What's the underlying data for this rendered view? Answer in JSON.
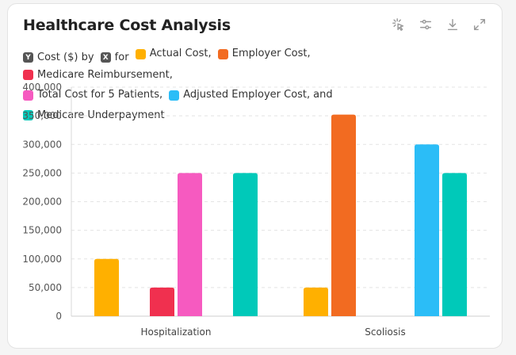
{
  "card": {
    "title": "Healthcare Cost Analysis"
  },
  "toolbar": {
    "icons": [
      "select-pointer-icon",
      "sliders-icon",
      "download-icon",
      "expand-icon"
    ]
  },
  "legend": {
    "y_badge": "Y",
    "x_badge": "X",
    "y_text": "Cost ($) by",
    "for_text": "for",
    "and_text": "and",
    "items": [
      {
        "label": "Actual Cost,",
        "color": "#FFB000"
      },
      {
        "label": "Employer Cost,",
        "color": "#F26B21"
      },
      {
        "label": "Medicare Reimbursement,",
        "color": "#F0304F"
      },
      {
        "label": "Total Cost for 5 Patients,",
        "color": "#F65AC0"
      },
      {
        "label": "Adjusted Employer Cost,",
        "color": "#2BBDF7"
      },
      {
        "label": "Medicare Underpayment",
        "color": "#00C9B9"
      }
    ]
  },
  "chart_data": {
    "type": "bar",
    "categories": [
      "Hospitalization",
      "Scoliosis"
    ],
    "ylim": [
      0,
      400000
    ],
    "yticks": [
      "0",
      "50,000",
      "100,000",
      "150,000",
      "200,000",
      "250,000",
      "300,000",
      "350,000",
      "400,000"
    ],
    "grid": true,
    "legend_placement": "top",
    "series": [
      {
        "name": "Actual Cost",
        "color": "#FFB000",
        "values": [
          100000,
          50000
        ]
      },
      {
        "name": "Employer Cost",
        "color": "#F26B21",
        "values": [
          null,
          352000
        ]
      },
      {
        "name": "Medicare Reimbursement",
        "color": "#F0304F",
        "values": [
          50000,
          null
        ]
      },
      {
        "name": "Total Cost for 5 Patients",
        "color": "#F65AC0",
        "values": [
          250000,
          null
        ]
      },
      {
        "name": "Adjusted Employer Cost",
        "color": "#2BBDF7",
        "values": [
          null,
          300000
        ]
      },
      {
        "name": "Medicare Underpayment",
        "color": "#00C9B9",
        "values": [
          250000,
          250000
        ]
      }
    ]
  }
}
